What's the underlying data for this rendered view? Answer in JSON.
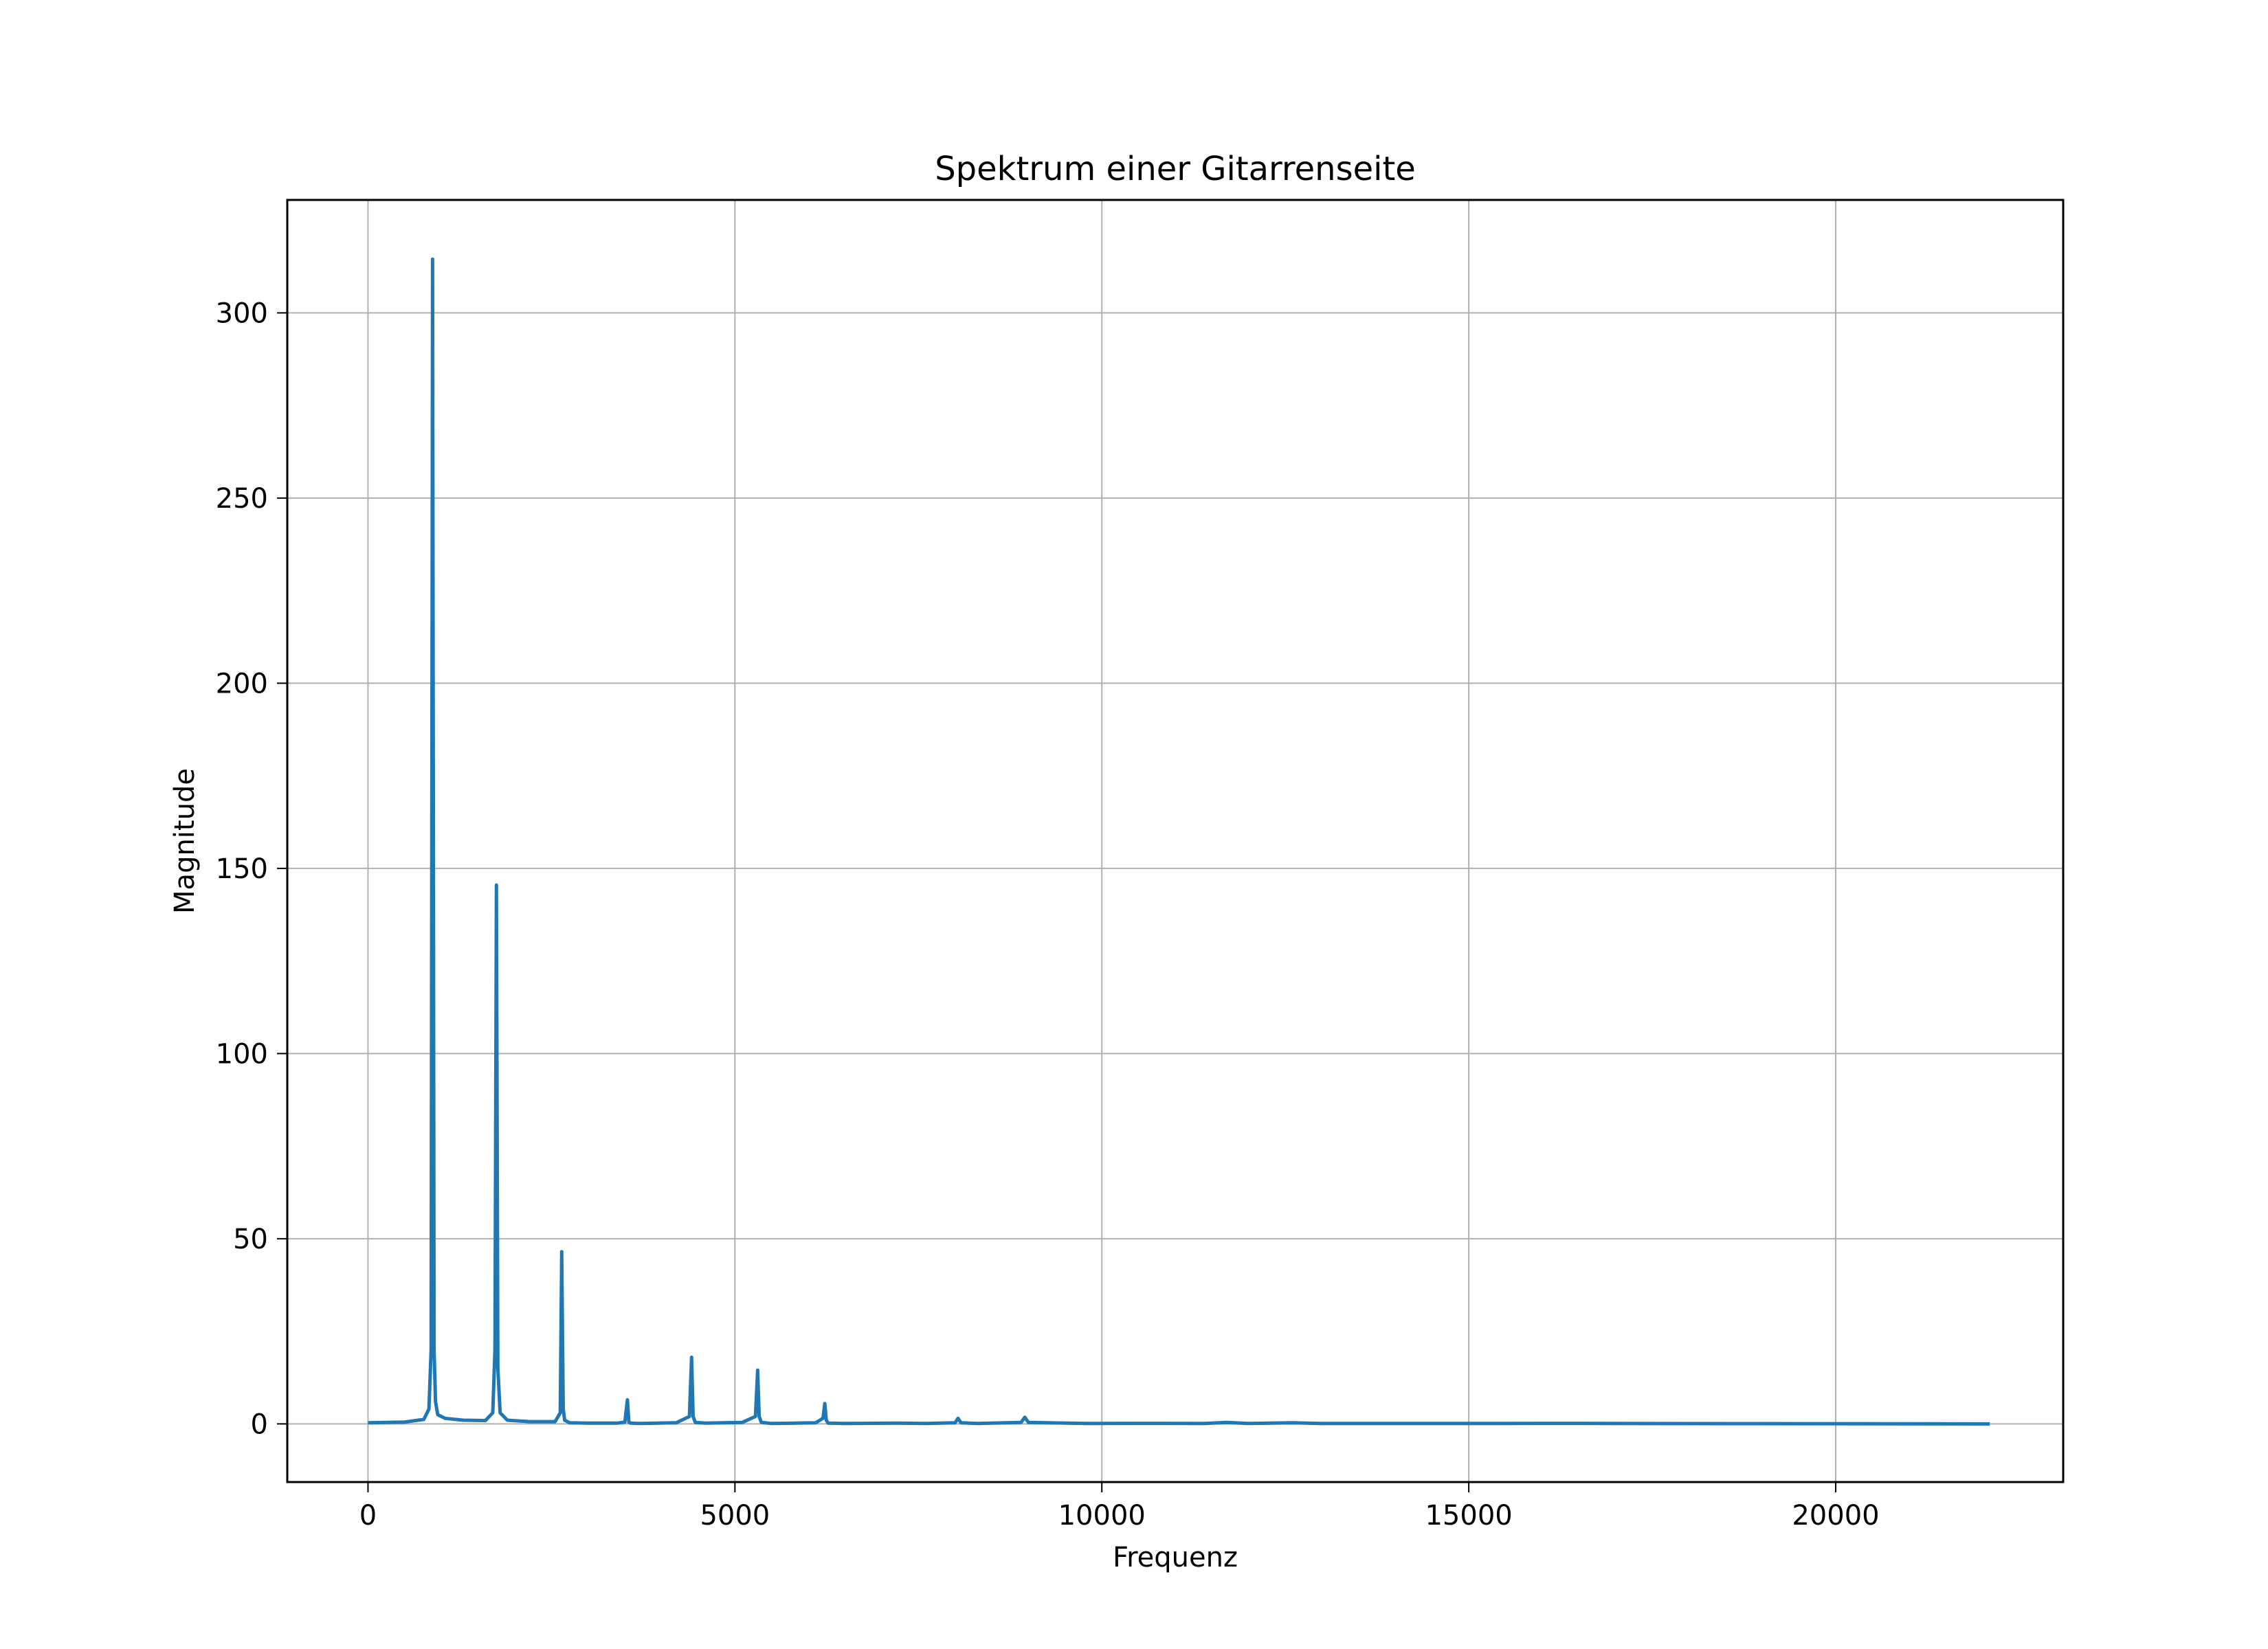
{
  "chart_data": {
    "type": "line",
    "title": "Spektrum einer Gitarrenseite",
    "xlabel": "Frequenz",
    "ylabel": "Magnitude",
    "xlim": [
      -1100,
      23100
    ],
    "ylim": [
      -15.7,
      330.5
    ],
    "xticks": [
      0,
      5000,
      10000,
      15000,
      20000
    ],
    "yticks": [
      0,
      50,
      100,
      150,
      200,
      250,
      300
    ],
    "grid": true,
    "legend": "none",
    "series": [
      {
        "color": "#1f77b4",
        "x": [
          0,
          500,
          760,
          830,
          860,
          880,
          900,
          920,
          950,
          1050,
          1300,
          1600,
          1700,
          1730,
          1750,
          1770,
          1800,
          1900,
          2200,
          2550,
          2620,
          2640,
          2660,
          2680,
          2750,
          3000,
          3400,
          3500,
          3535,
          3555,
          3580,
          3700,
          4200,
          4380,
          4410,
          4430,
          4460,
          4600,
          5100,
          5280,
          5310,
          5330,
          5360,
          5500,
          6100,
          6200,
          6225,
          6245,
          6270,
          6500,
          7200,
          7600,
          8000,
          8040,
          8080,
          8300,
          8900,
          8950,
          9000,
          9800,
          10700,
          11400,
          11700,
          12000,
          12600,
          13000,
          15300,
          16200,
          17000,
          22100
        ],
        "y": [
          0.3,
          0.5,
          1.2,
          4,
          20,
          314.5,
          20,
          6,
          2.5,
          1.5,
          1,
          0.9,
          3,
          20,
          145.5,
          15,
          3,
          1,
          0.6,
          0.6,
          3,
          46.5,
          4,
          1,
          0.3,
          0.2,
          0.2,
          0.5,
          6.5,
          0.5,
          0.2,
          0.1,
          0.3,
          2,
          18,
          2,
          0.4,
          0.2,
          0.4,
          2,
          14.5,
          2,
          0.4,
          0.1,
          0.3,
          1.5,
          5.5,
          1,
          0.2,
          0.1,
          0.2,
          0.1,
          0.3,
          1.5,
          0.3,
          0.1,
          0.4,
          1.8,
          0.4,
          0.1,
          0.15,
          0.1,
          0.4,
          0.1,
          0.3,
          0.1,
          0.1,
          0.15,
          0.1,
          0
        ]
      }
    ]
  }
}
